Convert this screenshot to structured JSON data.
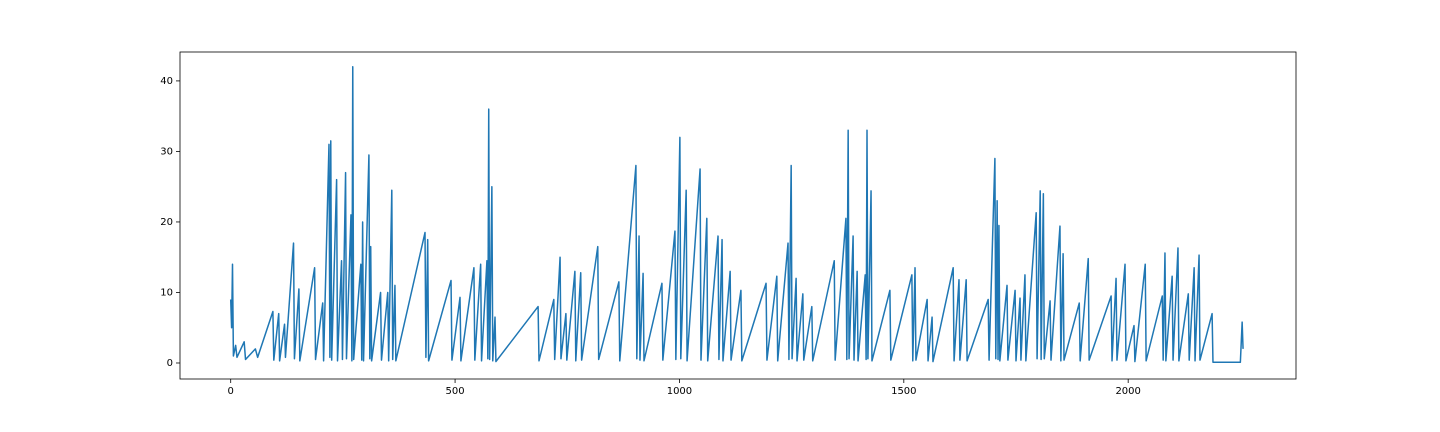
{
  "chart_data": {
    "type": "line",
    "color": "#1f77b4",
    "x": [
      0,
      2,
      4,
      6,
      11,
      14,
      30,
      33,
      55,
      60,
      94,
      96,
      107,
      109,
      120,
      122,
      140,
      142,
      152,
      154,
      187,
      189,
      205,
      207,
      219,
      221,
      223,
      225,
      236,
      238,
      247,
      249,
      256,
      258,
      268,
      270,
      272,
      274,
      290,
      292,
      294,
      296,
      308,
      310,
      312,
      314,
      334,
      336,
      350,
      352,
      359,
      361,
      366,
      368,
      433,
      435,
      439,
      441,
      491,
      493,
      511,
      513,
      542,
      544,
      557,
      559,
      571,
      573,
      575,
      577,
      582,
      584,
      589,
      591,
      685,
      687,
      720,
      722,
      734,
      736,
      747,
      749,
      767,
      769,
      780,
      782,
      818,
      820,
      865,
      867,
      903,
      905,
      910,
      912,
      919,
      921,
      961,
      963,
      990,
      992,
      1001,
      1003,
      1015,
      1017,
      1046,
      1048,
      1061,
      1063,
      1086,
      1088,
      1095,
      1097,
      1113,
      1115,
      1137,
      1139,
      1193,
      1195,
      1217,
      1219,
      1242,
      1244,
      1249,
      1251,
      1260,
      1262,
      1275,
      1277,
      1295,
      1297,
      1345,
      1347,
      1371,
      1373,
      1376,
      1378,
      1387,
      1389,
      1396,
      1398,
      1414,
      1416,
      1418,
      1420,
      1427,
      1429,
      1469,
      1471,
      1518,
      1520,
      1525,
      1527,
      1552,
      1554,
      1563,
      1565,
      1610,
      1612,
      1623,
      1625,
      1639,
      1641,
      1688,
      1690,
      1703,
      1705,
      1708,
      1710,
      1712,
      1714,
      1730,
      1732,
      1748,
      1750,
      1759,
      1761,
      1770,
      1772,
      1795,
      1797,
      1804,
      1806,
      1811,
      1813,
      1826,
      1828,
      1848,
      1850,
      1855,
      1857,
      1891,
      1893,
      1911,
      1913,
      1962,
      1964,
      1973,
      1975,
      1993,
      1995,
      2013,
      2015,
      2038,
      2040,
      2076,
      2078,
      2082,
      2084,
      2098,
      2100,
      2111,
      2113,
      2134,
      2136,
      2147,
      2149,
      2158,
      2160,
      2187,
      2189,
      2250,
      2254,
      2256
    ],
    "values": [
      9,
      5,
      14,
      1,
      2.5,
      0.8,
      3,
      0.5,
      2,
      0.8,
      7.3,
      0.4,
      7,
      0.3,
      5.5,
      0.8,
      17,
      0.6,
      10.5,
      0.3,
      13.5,
      0.5,
      8.5,
      0.3,
      31,
      0.8,
      31.5,
      0.4,
      26,
      0.3,
      14.5,
      0.5,
      27,
      0.6,
      21,
      0.3,
      42,
      0.5,
      14,
      0.4,
      20,
      0.3,
      29.5,
      0.6,
      16.5,
      0.3,
      10,
      0.4,
      10,
      0.3,
      24.5,
      0.5,
      11,
      0.3,
      18.5,
      0.8,
      17.5,
      0.3,
      11.7,
      0.4,
      9.3,
      0.3,
      13.5,
      0.4,
      14,
      0.3,
      14.5,
      0.6,
      36,
      0.5,
      25,
      0.3,
      6.5,
      0.2,
      8,
      0.3,
      9,
      0.5,
      15,
      0.6,
      7,
      0.4,
      13,
      0.3,
      12.8,
      0.4,
      16.5,
      0.5,
      11.5,
      0.3,
      28,
      0.6,
      18,
      0.4,
      12.7,
      0.3,
      11.3,
      0.4,
      18.7,
      0.5,
      32,
      0.6,
      24.5,
      0.3,
      27.5,
      0.4,
      20.5,
      0.3,
      18,
      0.5,
      17.5,
      0.3,
      13,
      0.4,
      10.3,
      0.3,
      11.3,
      0.4,
      12.3,
      0.3,
      17,
      0.5,
      28,
      0.6,
      12,
      0.3,
      9.8,
      0.4,
      8,
      0.3,
      14.5,
      0.4,
      20.5,
      0.5,
      33,
      0.6,
      18,
      0.4,
      13,
      0.3,
      12.5,
      0.5,
      33,
      0.6,
      24.4,
      0.3,
      10.3,
      0.4,
      12.5,
      0.3,
      13.5,
      0.4,
      9,
      0.3,
      6.5,
      0.2,
      13.5,
      0.3,
      11.8,
      0.4,
      11.8,
      0.3,
      9,
      0.4,
      29,
      0.6,
      23,
      0.5,
      19.5,
      0.3,
      11,
      0.4,
      10.3,
      0.3,
      9.2,
      0.4,
      12.5,
      0.3,
      21.3,
      0.6,
      24.4,
      0.5,
      24,
      0.6,
      8.8,
      0.4,
      19.4,
      0.3,
      15.5,
      0.4,
      8.5,
      0.3,
      14.8,
      0.4,
      9.5,
      0.3,
      12,
      0.4,
      14,
      0.3,
      5.3,
      0.2,
      14,
      0.3,
      9.5,
      0.4,
      15.6,
      0.3,
      12.3,
      0.4,
      16.3,
      0.3,
      9.8,
      0.4,
      13.5,
      0.3,
      15.3,
      0.4,
      7,
      0.1,
      0.1,
      5.8,
      2
    ],
    "xlim": [
      -113,
      2374
    ],
    "ylim": [
      -2.27,
      44.1
    ],
    "xticks": [
      0,
      500,
      1000,
      1500,
      2000
    ],
    "yticks": [
      0,
      10,
      20,
      30,
      40
    ]
  }
}
